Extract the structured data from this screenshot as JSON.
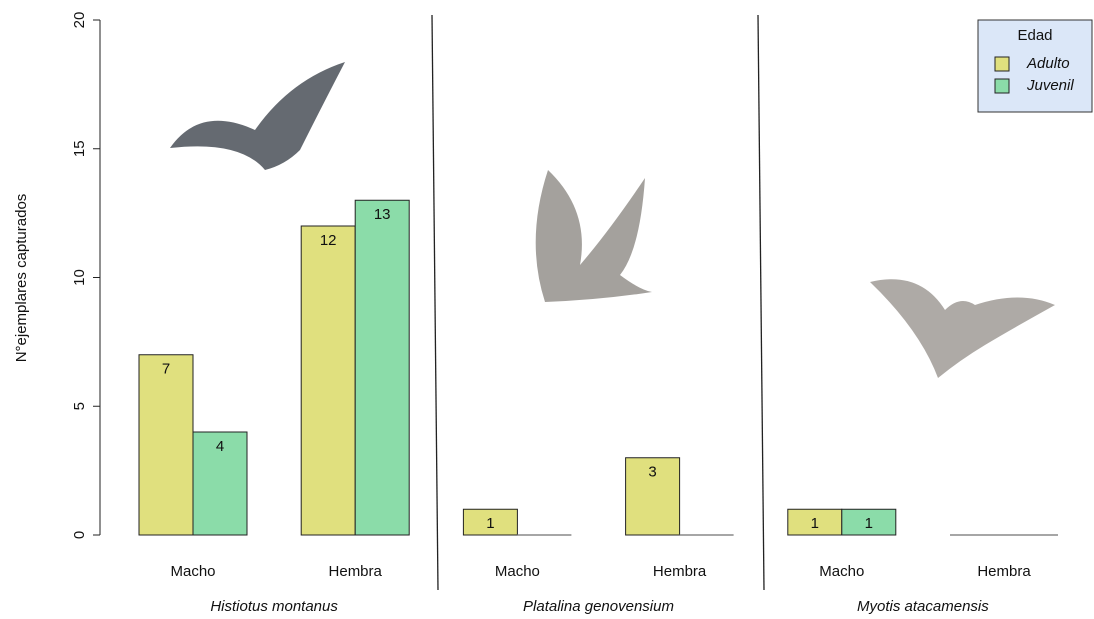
{
  "chart_data": {
    "type": "bar",
    "ylabel": "N°ejemplares capturados",
    "categories": [
      "Macho",
      "Hembra",
      "Macho",
      "Hembra",
      "Macho",
      "Hembra"
    ],
    "groups": [
      "Histiotus montanus",
      "Platalina genovensium",
      "Myotis atacamensis"
    ],
    "legend_title": "Edad",
    "legend_position": "top-right",
    "series": [
      {
        "name": "Adulto",
        "color": "#e0e07e",
        "values": [
          7,
          12,
          1,
          3,
          1,
          0
        ]
      },
      {
        "name": "Juvenil",
        "color": "#8bdca9",
        "values": [
          4,
          13,
          0,
          0,
          1,
          0
        ]
      }
    ],
    "ylim": [
      0,
      20
    ],
    "yticks": [
      0,
      5,
      10,
      15,
      20
    ]
  }
}
